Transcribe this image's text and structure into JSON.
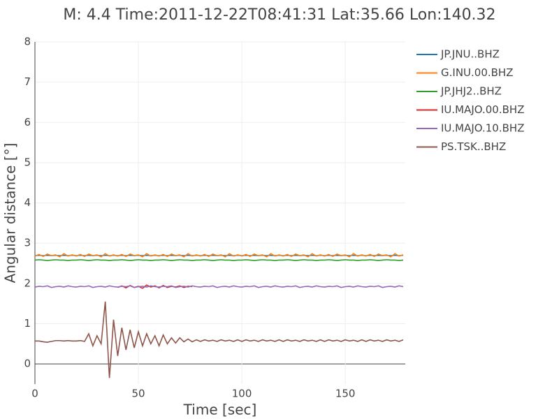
{
  "chart_data": {
    "type": "line",
    "title": "M: 4.4 Time:2011-12-22T08:41:31 Lat:35.66 Lon:140.32",
    "x_label": "Time [sec]",
    "y_label": "Angular distance [°]",
    "xlim": [
      0,
      179
    ],
    "ylim": [
      -0.5,
      8
    ],
    "xticks": [
      0,
      50,
      100,
      150
    ],
    "yticks": [
      0,
      1,
      2,
      3,
      4,
      5,
      6,
      7,
      8
    ],
    "grid": true,
    "x": [
      0,
      2,
      4,
      6,
      8,
      10,
      12,
      14,
      16,
      18,
      20,
      22,
      24,
      26,
      28,
      30,
      32,
      34,
      36,
      38,
      40,
      42,
      44,
      46,
      48,
      50,
      52,
      54,
      56,
      58,
      60,
      62,
      64,
      66,
      68,
      70,
      72,
      74,
      76,
      78,
      80,
      82,
      84,
      86,
      88,
      90,
      92,
      94,
      96,
      98,
      100,
      102,
      104,
      106,
      108,
      110,
      112,
      114,
      116,
      118,
      120,
      122,
      124,
      126,
      128,
      130,
      132,
      134,
      136,
      138,
      140,
      142,
      144,
      146,
      148,
      150,
      152,
      154,
      156,
      158,
      160,
      162,
      164,
      166,
      168,
      170,
      172,
      174,
      176,
      178
    ],
    "series": [
      {
        "name": "JP.JNU..BHZ",
        "color": "#1f77b4",
        "values": [
          2.69,
          2.7,
          2.69,
          2.7,
          2.69,
          2.7,
          2.69,
          2.7,
          2.69,
          2.7,
          2.69,
          2.7,
          2.69,
          2.7,
          2.69,
          2.7,
          2.69,
          2.7,
          2.69,
          2.7,
          2.69,
          2.7,
          2.69,
          2.7,
          2.69,
          2.7,
          2.69,
          2.7,
          2.69,
          2.7,
          2.69,
          2.7,
          2.69,
          2.7,
          2.69,
          2.7,
          2.69,
          2.7,
          2.69,
          2.7,
          2.69,
          2.7,
          2.69,
          2.7,
          2.69,
          2.7,
          2.69,
          2.7,
          2.69,
          2.7,
          2.69,
          2.7,
          2.69,
          2.7,
          2.69,
          2.7,
          2.69,
          2.7,
          2.69,
          2.7,
          2.69,
          2.7,
          2.69,
          2.7,
          2.69,
          2.7,
          2.69,
          2.7,
          2.69,
          2.7,
          2.69,
          2.7,
          2.69,
          2.7,
          2.69,
          2.7,
          2.69,
          2.7,
          2.69,
          2.7,
          2.69,
          2.7,
          2.69,
          2.7,
          2.69,
          2.7,
          2.69,
          2.7,
          2.69,
          2.7
        ]
      },
      {
        "name": "G.INU.00.BHZ",
        "color": "#ff7f0e",
        "values": [
          2.68,
          2.72,
          2.67,
          2.73,
          2.69,
          2.71,
          2.66,
          2.74,
          2.68,
          2.71,
          2.68,
          2.72,
          2.67,
          2.73,
          2.69,
          2.71,
          2.66,
          2.74,
          2.68,
          2.71,
          2.68,
          2.72,
          2.67,
          2.73,
          2.69,
          2.71,
          2.66,
          2.74,
          2.68,
          2.71,
          2.68,
          2.72,
          2.67,
          2.73,
          2.69,
          2.71,
          2.66,
          2.74,
          2.68,
          2.71,
          2.68,
          2.72,
          2.67,
          2.73,
          2.69,
          2.71,
          2.66,
          2.74,
          2.68,
          2.71,
          2.68,
          2.72,
          2.67,
          2.73,
          2.69,
          2.71,
          2.66,
          2.74,
          2.68,
          2.71,
          2.68,
          2.72,
          2.67,
          2.73,
          2.69,
          2.71,
          2.66,
          2.74,
          2.68,
          2.71,
          2.68,
          2.72,
          2.67,
          2.73,
          2.69,
          2.71,
          2.66,
          2.74,
          2.68,
          2.71,
          2.68,
          2.72,
          2.67,
          2.73,
          2.69,
          2.71,
          2.66,
          2.74,
          2.68,
          2.71
        ]
      },
      {
        "name": "JP.JHJ2..BHZ",
        "color": "#2ca02c",
        "values": [
          2.58,
          2.59,
          2.58,
          2.57,
          2.58,
          2.59,
          2.58,
          2.58,
          2.57,
          2.58,
          2.58,
          2.59,
          2.58,
          2.57,
          2.58,
          2.59,
          2.58,
          2.58,
          2.57,
          2.58,
          2.58,
          2.59,
          2.58,
          2.57,
          2.58,
          2.59,
          2.58,
          2.58,
          2.57,
          2.58,
          2.58,
          2.59,
          2.58,
          2.57,
          2.58,
          2.59,
          2.58,
          2.58,
          2.57,
          2.58,
          2.58,
          2.59,
          2.58,
          2.57,
          2.58,
          2.59,
          2.58,
          2.58,
          2.57,
          2.58,
          2.58,
          2.59,
          2.58,
          2.57,
          2.58,
          2.59,
          2.58,
          2.58,
          2.57,
          2.58,
          2.58,
          2.59,
          2.58,
          2.57,
          2.58,
          2.59,
          2.58,
          2.58,
          2.57,
          2.58,
          2.58,
          2.59,
          2.58,
          2.57,
          2.58,
          2.59,
          2.58,
          2.58,
          2.57,
          2.58,
          2.58,
          2.59,
          2.58,
          2.57,
          2.58,
          2.59,
          2.58,
          2.58,
          2.57,
          2.58
        ]
      },
      {
        "name": "IU.MAJO.00.BHZ",
        "color": "#d62728",
        "values": [
          null,
          null,
          null,
          null,
          null,
          null,
          null,
          null,
          null,
          null,
          null,
          null,
          null,
          null,
          null,
          null,
          null,
          null,
          null,
          null,
          1.9,
          1.94,
          1.89,
          1.95,
          1.9,
          1.93,
          1.88,
          1.96,
          1.91,
          1.94,
          1.89,
          1.95,
          1.9,
          1.93,
          1.91,
          1.94,
          1.9,
          1.93,
          1.92,
          null,
          null,
          null,
          null,
          null,
          null,
          null,
          null,
          null,
          null,
          null,
          null,
          null,
          null,
          null,
          null,
          null,
          null,
          null,
          null,
          null,
          null,
          null,
          null,
          null,
          null,
          null,
          null,
          null,
          null,
          null,
          null,
          null,
          null,
          null,
          null,
          null,
          null,
          null,
          null,
          null,
          null,
          null,
          null,
          null,
          null,
          null,
          null,
          null,
          null,
          null
        ]
      },
      {
        "name": "IU.MAJO.10.BHZ",
        "color": "#9467bd",
        "values": [
          1.91,
          1.93,
          1.92,
          1.94,
          1.9,
          1.92,
          1.93,
          1.91,
          1.94,
          1.92,
          1.91,
          1.93,
          1.92,
          1.94,
          1.9,
          1.92,
          1.93,
          1.91,
          1.94,
          1.92,
          1.91,
          1.93,
          1.92,
          1.94,
          1.9,
          1.92,
          1.93,
          1.91,
          1.94,
          1.92,
          1.91,
          1.93,
          1.92,
          1.94,
          1.9,
          1.92,
          1.93,
          1.91,
          1.94,
          1.92,
          1.91,
          1.93,
          1.92,
          1.94,
          1.9,
          1.92,
          1.93,
          1.91,
          1.94,
          1.92,
          1.91,
          1.93,
          1.92,
          1.94,
          1.9,
          1.92,
          1.93,
          1.91,
          1.94,
          1.92,
          1.91,
          1.93,
          1.92,
          1.94,
          1.9,
          1.92,
          1.93,
          1.91,
          1.94,
          1.92,
          1.91,
          1.93,
          1.92,
          1.94,
          1.9,
          1.92,
          1.93,
          1.91,
          1.94,
          1.92,
          1.91,
          1.93,
          1.92,
          1.94,
          1.9,
          1.92,
          1.93,
          1.91,
          1.94,
          1.92
        ]
      },
      {
        "name": "PS.TSK..BHZ",
        "color": "#8c564b",
        "values": [
          0.57,
          0.57,
          0.55,
          0.54,
          0.56,
          0.58,
          0.58,
          0.57,
          0.58,
          0.57,
          0.57,
          0.58,
          0.56,
          0.75,
          0.45,
          0.7,
          0.5,
          1.55,
          -0.35,
          1.1,
          0.2,
          0.9,
          0.35,
          0.85,
          0.4,
          0.8,
          0.45,
          0.75,
          0.5,
          0.7,
          0.45,
          0.72,
          0.5,
          0.65,
          0.52,
          0.65,
          0.55,
          0.62,
          0.55,
          0.6,
          0.56,
          0.6,
          0.57,
          0.59,
          0.56,
          0.6,
          0.57,
          0.59,
          0.56,
          0.6,
          0.56,
          0.6,
          0.57,
          0.59,
          0.56,
          0.6,
          0.57,
          0.59,
          0.56,
          0.6,
          0.56,
          0.6,
          0.57,
          0.59,
          0.56,
          0.6,
          0.57,
          0.59,
          0.56,
          0.6,
          0.56,
          0.6,
          0.57,
          0.59,
          0.56,
          0.6,
          0.57,
          0.59,
          0.56,
          0.6,
          0.56,
          0.6,
          0.57,
          0.59,
          0.56,
          0.6,
          0.57,
          0.59,
          0.56,
          0.6
        ]
      }
    ]
  }
}
